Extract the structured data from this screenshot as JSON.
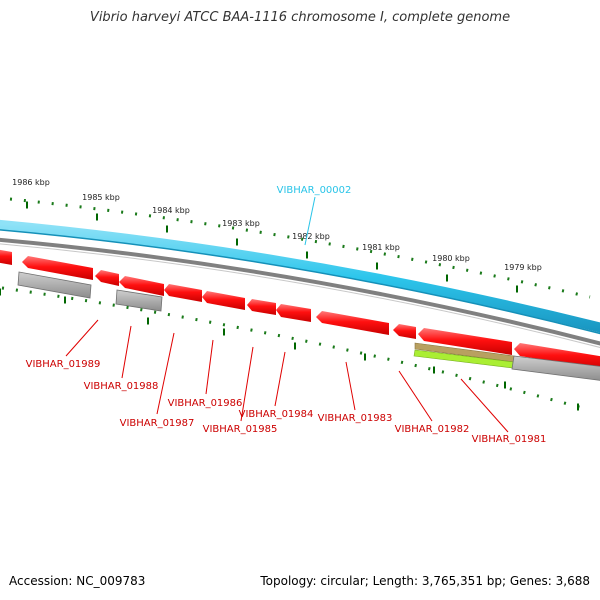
{
  "title": "Vibrio harveyi ATCC BAA-1116 chromosome I, complete genome",
  "footer": {
    "accession": "Accession: NC_009783",
    "summary": "Topology: circular; Length: 3,765,351 bp; Genes: 3,688"
  },
  "scale_labels": [
    "1986 kbp",
    "1985 kbp",
    "1984 kbp",
    "1983 kbp",
    "1982 kbp",
    "1981 kbp",
    "1980 kbp",
    "1979 kbp"
  ],
  "genes_forward": [
    {
      "label": "VIBHAR_00002",
      "color": "#29c4e8"
    }
  ],
  "genes_reverse": [
    {
      "label": "VIBHAR_01989",
      "color": "#cc0000"
    },
    {
      "label": "VIBHAR_01988",
      "color": "#cc0000"
    },
    {
      "label": "VIBHAR_01987",
      "color": "#cc0000"
    },
    {
      "label": "VIBHAR_01986",
      "color": "#cc0000"
    },
    {
      "label": "VIBHAR_01985",
      "color": "#cc0000"
    },
    {
      "label": "VIBHAR_01984",
      "color": "#cc0000"
    },
    {
      "label": "VIBHAR_01983",
      "color": "#cc0000"
    },
    {
      "label": "VIBHAR_01982",
      "color": "#cc0000"
    },
    {
      "label": "VIBHAR_01981",
      "color": "#cc0000"
    }
  ],
  "colors": {
    "forward_strand": "#29c4e8",
    "backbone": "#777777",
    "cds": "#ff0000",
    "gene_grey": "#b0b0b0",
    "other_olive": "#b8a060",
    "other_green": "#aaee33",
    "tick_green": "#006600"
  }
}
